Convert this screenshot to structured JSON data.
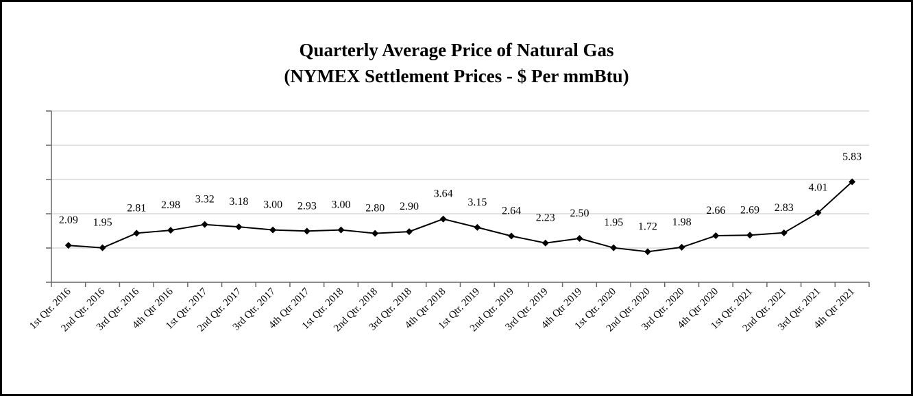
{
  "chart_data": {
    "type": "line",
    "title": "Quarterly Average Price of Natural Gas",
    "subtitle": "(NYMEX Settlement Prices - $ Per mmBtu)",
    "categories": [
      "1st Qtr. 2016",
      "2nd Qtr. 2016",
      "3rd Qtr. 2016",
      "4th Qtr 2016",
      "1st Qtr. 2017",
      "2nd Qtr. 2017",
      "3rd Qtr. 2017",
      "4th Qtr 2017",
      "1st Qtr. 2018",
      "2nd Qtr. 2018",
      "3rd Qtr. 2018",
      "4th Qtr 2018",
      "1st Qtr. 2019",
      "2nd Qtr. 2019",
      "3rd Qtr. 2019",
      "4th Qtr 2019",
      "1st Qtr. 2020",
      "2nd Qtr. 2020",
      "3rd Qtr. 2020",
      "4th Qtr 2020",
      "1st Qtr. 2021",
      "2nd Qtr. 2021",
      "3rd Qtr. 2021",
      "4th Qtr 2021"
    ],
    "values": [
      2.09,
      1.95,
      2.81,
      2.98,
      3.32,
      3.18,
      3.0,
      2.93,
      3.0,
      2.8,
      2.9,
      3.64,
      3.15,
      2.64,
      2.23,
      2.5,
      1.95,
      1.72,
      1.98,
      2.66,
      2.69,
      2.83,
      4.01,
      5.83
    ],
    "labels": [
      "2.09",
      "1.95",
      "2.81",
      "2.98",
      "3.32",
      "3.18",
      "3.00",
      "2.93",
      "3.00",
      "2.80",
      "2.90",
      "3.64",
      "3.15",
      "2.64",
      "2.23",
      "2.50",
      "1.95",
      "1.72",
      "1.98",
      "2.66",
      "2.69",
      "2.83",
      "4.01",
      "5.83"
    ],
    "ylim": [
      -0.08,
      10
    ],
    "grid": true,
    "marker": "diamond",
    "line_color": "#000000",
    "grid_color": "#d9d9d9"
  }
}
